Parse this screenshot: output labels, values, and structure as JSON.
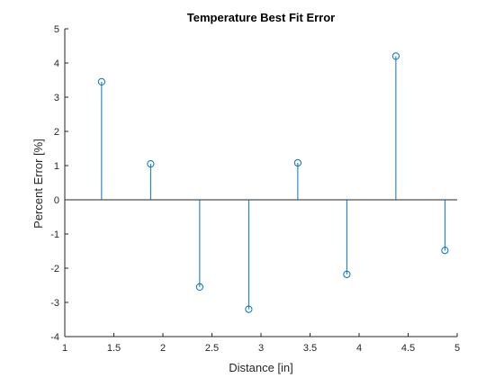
{
  "chart_data": {
    "type": "stem",
    "title": "Temperature Best Fit Error",
    "xlabel": "Distance [in]",
    "ylabel": "Percent Error [%]",
    "xlim": [
      1,
      5
    ],
    "ylim": [
      -4,
      5
    ],
    "xticks": [
      1,
      1.5,
      2,
      2.5,
      3,
      3.5,
      4,
      4.5,
      5
    ],
    "xtick_labels": [
      "1",
      "1.5",
      "2",
      "2.5",
      "3",
      "3.5",
      "4",
      "4.5",
      "5"
    ],
    "yticks": [
      -4,
      -3,
      -2,
      -1,
      0,
      1,
      2,
      3,
      4,
      5
    ],
    "ytick_labels": [
      "-4",
      "-3",
      "-2",
      "-1",
      "0",
      "1",
      "2",
      "3",
      "4",
      "5"
    ],
    "baseline": 0,
    "grid": false,
    "series": [
      {
        "x": [
          1.375,
          1.875,
          2.375,
          2.875,
          3.375,
          3.875,
          4.375,
          4.875
        ],
        "y": [
          3.45,
          1.05,
          -2.55,
          -3.2,
          1.08,
          -2.18,
          4.2,
          -1.48
        ],
        "color": "#0072BD",
        "marker": "circle-open"
      }
    ]
  }
}
